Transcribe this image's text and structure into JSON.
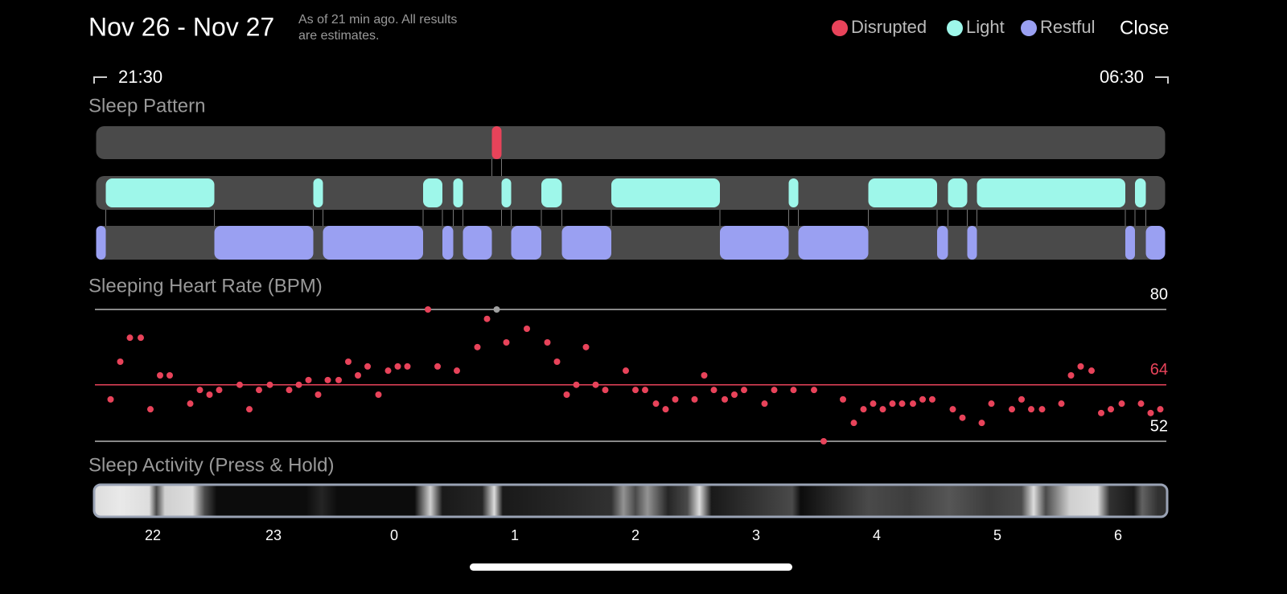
{
  "header": {
    "title": "Nov 26 - Nov 27",
    "subtitle_lines": [
      "As of 21 min ago. All results",
      "are estimates."
    ],
    "close": "Close"
  },
  "range": {
    "start": "21:30",
    "end": "06:30"
  },
  "chart_data": [
    {
      "type": "timeline",
      "title": "Sleep Pattern",
      "xlim": [
        21.53,
        30.39
      ],
      "series": [
        {
          "name": "Disrupted",
          "color": "#e8435a",
          "segments": [
            [
              24.81,
              24.89
            ]
          ]
        },
        {
          "name": "Light",
          "color": "#9ef7ea",
          "segments": [
            [
              21.61,
              22.51
            ],
            [
              23.33,
              23.41
            ],
            [
              24.24,
              24.4
            ],
            [
              24.49,
              24.57
            ],
            [
              24.89,
              24.97
            ],
            [
              25.22,
              25.39
            ],
            [
              25.8,
              26.7
            ],
            [
              27.27,
              27.35
            ],
            [
              27.93,
              28.5
            ],
            [
              28.59,
              28.75
            ],
            [
              28.83,
              30.06
            ],
            [
              30.14,
              30.23
            ]
          ]
        },
        {
          "name": "Restful",
          "color": "#9aa0f2",
          "segments": [
            [
              21.53,
              21.61
            ],
            [
              22.51,
              23.33
            ],
            [
              23.41,
              24.24
            ],
            [
              24.4,
              24.49
            ],
            [
              24.57,
              24.81
            ],
            [
              24.97,
              25.22
            ],
            [
              25.39,
              25.8
            ],
            [
              26.7,
              27.27
            ],
            [
              27.35,
              27.93
            ],
            [
              28.5,
              28.59
            ],
            [
              28.75,
              28.83
            ],
            [
              30.06,
              30.14
            ],
            [
              30.23,
              30.39
            ]
          ]
        }
      ]
    },
    {
      "type": "scatter",
      "title": "Sleeping Heart Rate (BPM)",
      "xlim": [
        21.53,
        30.39
      ],
      "ylim": [
        52,
        80
      ],
      "yticks": [
        52,
        80
      ],
      "average": {
        "value": 64,
        "color": "#e8435a"
      },
      "series": [
        {
          "color": "#e8435a",
          "x": [
            21.65,
            21.73,
            21.81,
            21.9,
            21.98,
            22.06,
            22.14,
            22.31,
            22.39,
            22.47,
            22.55,
            22.72,
            22.8,
            22.88,
            22.97,
            23.13,
            23.21,
            23.29,
            23.37,
            23.45,
            23.54,
            23.62,
            23.7,
            23.78,
            23.87,
            23.95,
            24.03,
            24.11,
            24.28,
            24.36,
            24.52,
            24.69,
            24.77,
            24.93,
            25.1,
            25.27,
            25.35,
            25.43,
            25.51,
            25.59,
            25.67,
            25.75,
            25.92,
            26,
            26.08,
            26.17,
            26.25,
            26.33,
            26.49,
            26.57,
            26.65,
            26.74,
            26.82,
            26.9,
            27.07,
            27.15,
            27.31,
            27.48,
            27.56,
            27.72,
            27.81,
            27.89,
            27.97,
            28.05,
            28.13,
            28.21,
            28.3,
            28.38,
            28.46,
            28.63,
            28.71,
            28.87,
            28.95,
            29.12,
            29.2,
            29.28,
            29.37,
            29.53,
            29.61,
            29.69,
            29.78,
            29.86,
            29.94,
            30.03,
            30.19,
            30.27,
            30.35
          ],
          "values": [
            60.9,
            68.9,
            74,
            74,
            58.8,
            66,
            66,
            60,
            62.9,
            61.9,
            62.9,
            64,
            58.8,
            62.9,
            64,
            62.9,
            64,
            65,
            61.9,
            65,
            65,
            68.9,
            66,
            67.9,
            61.9,
            67,
            67.9,
            67.9,
            80,
            67.9,
            67,
            72,
            78,
            73,
            75.9,
            73,
            68.9,
            61.9,
            64,
            72,
            64,
            62.9,
            67,
            62.9,
            62.9,
            60,
            58.8,
            60.9,
            60.9,
            66,
            62.9,
            60.9,
            61.9,
            62.9,
            60,
            62.9,
            62.9,
            62.9,
            52,
            60.9,
            55.9,
            58.8,
            60,
            58.8,
            60,
            60,
            60,
            60.9,
            60.9,
            58.8,
            57,
            55.9,
            60,
            58.8,
            60.9,
            58.8,
            58.8,
            60,
            66,
            67.9,
            67,
            58,
            58.8,
            60,
            60,
            58,
            58.8
          ]
        },
        {
          "color": "#a0a0a0",
          "x": [
            24.85
          ],
          "values": [
            80
          ]
        }
      ]
    },
    {
      "type": "heatstrip",
      "title": "Sleep Activity (Press & Hold)",
      "xlim": [
        21.53,
        30.39
      ],
      "xticks": [
        {
          "value": 22,
          "label": "22"
        },
        {
          "value": 23,
          "label": "23"
        },
        {
          "value": 24,
          "label": "0"
        },
        {
          "value": 25,
          "label": "1"
        },
        {
          "value": 26,
          "label": "2"
        },
        {
          "value": 27,
          "label": "3"
        },
        {
          "value": 28,
          "label": "4"
        },
        {
          "value": 29,
          "label": "5"
        },
        {
          "value": 30,
          "label": "6"
        }
      ],
      "x": [
        21.53,
        21.73,
        21.97,
        22.03,
        22.1,
        22.33,
        22.43,
        22.53,
        23.27,
        23.4,
        23.53,
        24.17,
        24.3,
        24.4,
        24.73,
        24.83,
        24.9,
        25.8,
        25.9,
        26,
        26.1,
        26.27,
        26.43,
        26.53,
        26.63,
        27.3,
        27.37,
        27.93,
        28.27,
        28.6,
        28.93,
        29.2,
        29.3,
        29.4,
        29.6,
        29.83,
        29.93,
        30.13,
        30.2,
        30.33
      ],
      "values": [
        0.9,
        0.95,
        0.9,
        0.3,
        0.85,
        0.9,
        0.3,
        0.05,
        0.05,
        0.15,
        0.05,
        0.05,
        0.85,
        0.1,
        0.15,
        0.9,
        0.1,
        0.2,
        0.6,
        0.3,
        0.6,
        0.15,
        0.3,
        0.9,
        0.1,
        0.3,
        0.05,
        0.3,
        0.25,
        0.35,
        0.25,
        0.3,
        0.9,
        0.3,
        0.85,
        0.9,
        0.2,
        0.1,
        0.4,
        0.2
      ]
    }
  ]
}
